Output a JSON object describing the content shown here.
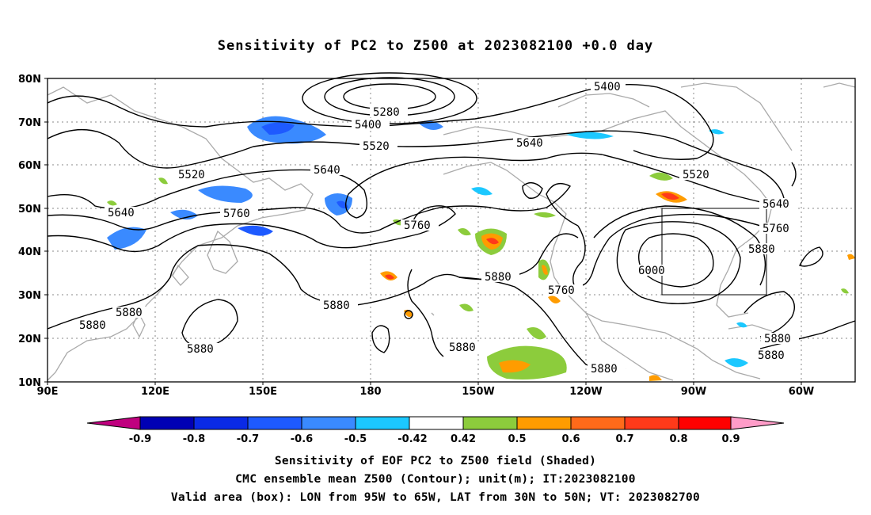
{
  "title": "Sensitivity of PC2 to Z500 at 2023082100 +0.0 day",
  "lat_labels": [
    "80N",
    "70N",
    "60N",
    "50N",
    "40N",
    "30N",
    "20N",
    "10N"
  ],
  "lon_labels": [
    "90E",
    "120E",
    "150E",
    "180",
    "150W",
    "120W",
    "90W",
    "60W"
  ],
  "contour_labels": [
    "5400",
    "5280",
    "5400",
    "5520",
    "5640",
    "5520",
    "5640",
    "5760",
    "5640",
    "5760",
    "5640",
    "5520",
    "5640",
    "5760",
    "5880",
    "6000",
    "5760",
    "5880",
    "5880",
    "5880",
    "5880",
    "5880",
    "5880",
    "5880",
    "5880",
    "5880"
  ],
  "colorbar": {
    "labels": [
      "-0.9",
      "-0.8",
      "-0.7",
      "-0.6",
      "-0.5",
      "-0.42",
      "0.42",
      "0.5",
      "0.6",
      "0.7",
      "0.8",
      "0.9"
    ],
    "colors": [
      "#c0007f",
      "#0000b4",
      "#0a2ae6",
      "#1e5aff",
      "#3a8aff",
      "#1cc8ff",
      "#ffffff",
      "#8ccc3c",
      "#ff9c00",
      "#ff6a1a",
      "#ff3a1a",
      "#ff0000",
      "#ff9cc8"
    ]
  },
  "captions": {
    "line1": "Sensitivity of EOF PC2 to Z500 field (Shaded)",
    "line2": "CMC ensemble mean Z500 (Contour); unit(m); IT:2023082100",
    "line3": "Valid area (box): LON from 95W to 65W, LAT from 30N to 50N; VT: 2023082700"
  }
}
